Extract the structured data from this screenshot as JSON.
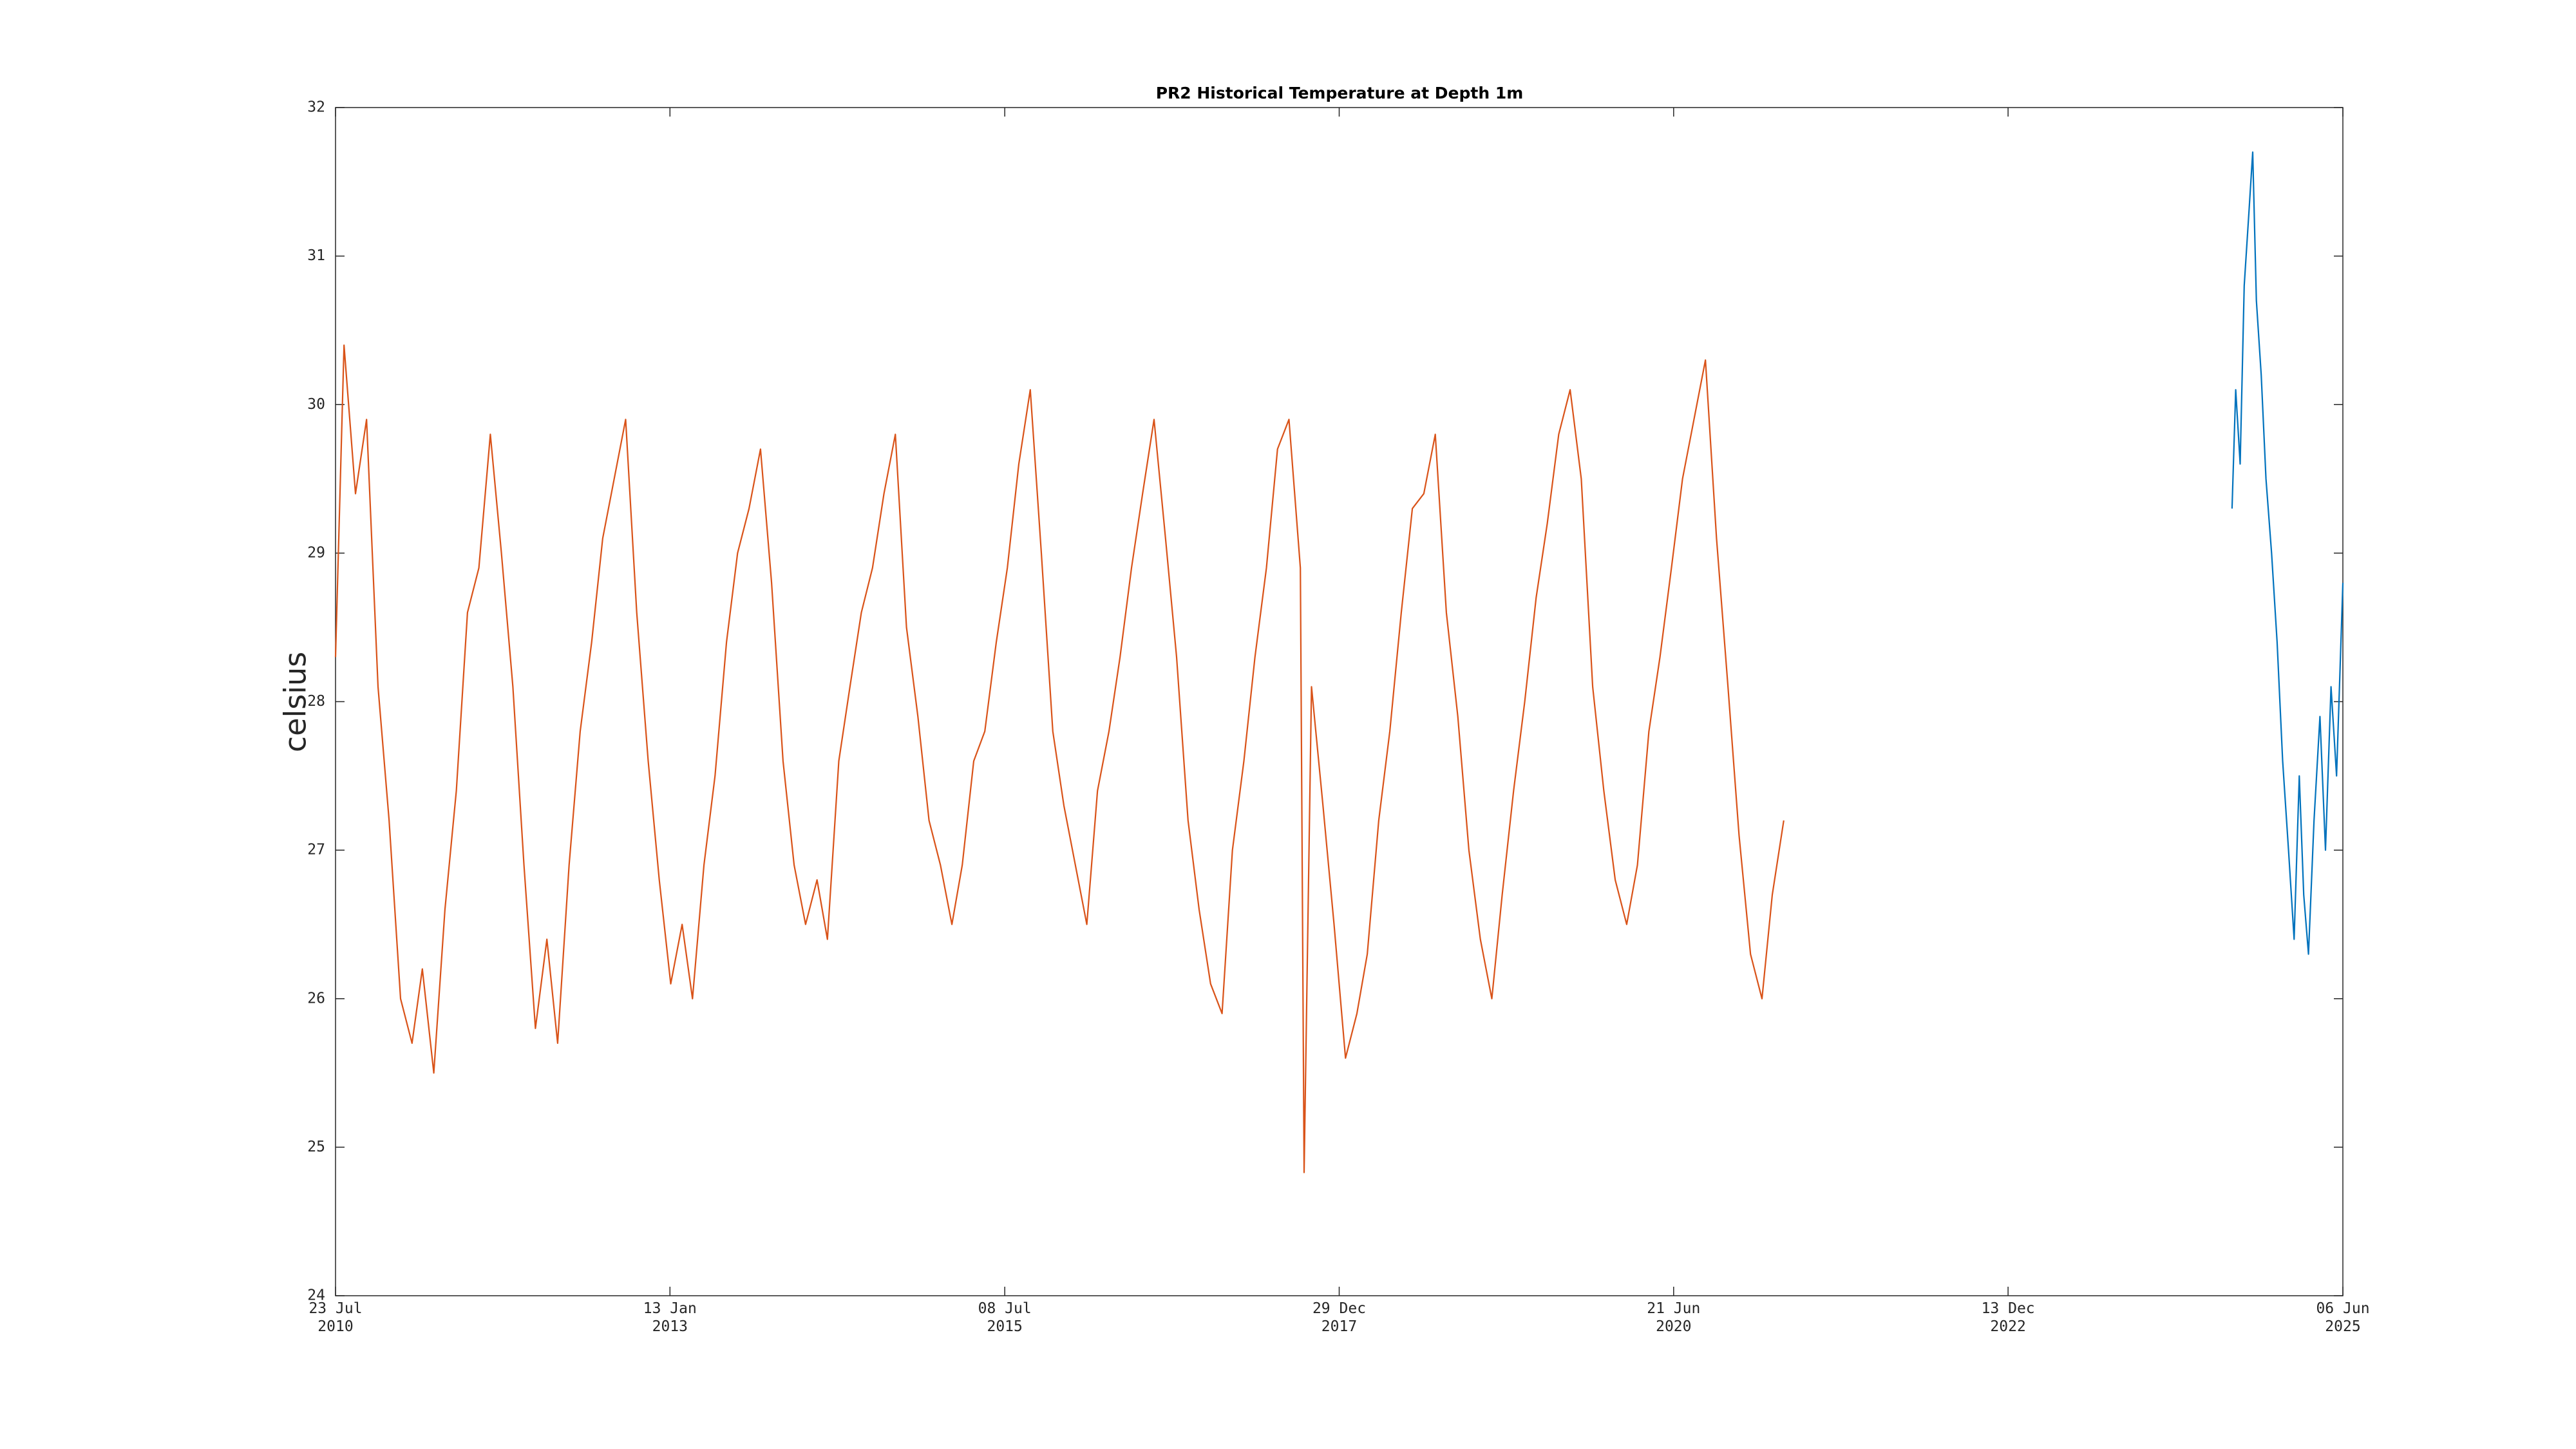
{
  "chart_data": {
    "type": "line",
    "title": "PR2 Historical Temperature at Depth 1m",
    "y_label": "celsius",
    "xlim": [
      "2010-07-23",
      "2025-06-06"
    ],
    "xticks": [
      {
        "value": "2010-07-23",
        "label": "23 Jul\n2010"
      },
      {
        "value": "2013-01-13",
        "label": "13 Jan\n2013"
      },
      {
        "value": "2015-07-08",
        "label": "08 Jul\n2015"
      },
      {
        "value": "2017-12-29",
        "label": "29 Dec\n2017"
      },
      {
        "value": "2020-06-21",
        "label": "21 Jun\n2020"
      },
      {
        "value": "2022-12-13",
        "label": "13 Dec\n2022"
      },
      {
        "value": "2025-06-06",
        "label": "06 Jun\n2025"
      }
    ],
    "ylim": [
      24,
      32
    ],
    "yticks": [
      24,
      25,
      26,
      27,
      28,
      29,
      30,
      31,
      32
    ],
    "grid": false,
    "series": [
      {
        "color": "#d95319",
        "x": [
          "2010-07-23",
          "2010-08-15",
          "2010-09-15",
          "2010-10-15",
          "2010-11-15",
          "2010-12-15",
          "2011-01-15",
          "2011-02-15",
          "2011-03-15",
          "2011-04-15",
          "2011-05-15",
          "2011-06-15",
          "2011-07-15",
          "2011-08-15",
          "2011-09-15",
          "2011-10-15",
          "2011-11-15",
          "2011-12-15",
          "2012-01-15",
          "2012-02-15",
          "2012-03-15",
          "2012-04-15",
          "2012-05-15",
          "2012-06-15",
          "2012-07-15",
          "2012-08-15",
          "2012-09-15",
          "2012-10-15",
          "2012-11-15",
          "2012-12-15",
          "2013-01-15",
          "2013-02-15",
          "2013-03-15",
          "2013-04-15",
          "2013-05-15",
          "2013-06-15",
          "2013-07-15",
          "2013-08-15",
          "2013-09-15",
          "2013-10-15",
          "2013-11-15",
          "2013-12-15",
          "2014-01-15",
          "2014-02-15",
          "2014-03-15",
          "2014-04-15",
          "2014-05-15",
          "2014-06-15",
          "2014-07-15",
          "2014-08-15",
          "2014-09-15",
          "2014-10-15",
          "2014-11-15",
          "2014-12-15",
          "2015-01-15",
          "2015-02-15",
          "2015-03-15",
          "2015-04-15",
          "2015-05-15",
          "2015-06-15",
          "2015-07-15",
          "2015-08-15",
          "2015-09-15",
          "2015-10-15",
          "2015-11-15",
          "2015-12-15",
          "2016-01-15",
          "2016-02-15",
          "2016-03-15",
          "2016-04-15",
          "2016-05-15",
          "2016-06-15",
          "2016-07-15",
          "2016-08-15",
          "2016-09-15",
          "2016-10-15",
          "2016-11-15",
          "2016-12-15",
          "2017-01-15",
          "2017-02-15",
          "2017-03-15",
          "2017-04-15",
          "2017-05-15",
          "2017-06-15",
          "2017-07-15",
          "2017-08-15",
          "2017-09-15",
          "2017-09-25",
          "2017-10-15",
          "2017-11-15",
          "2017-12-15",
          "2018-01-15",
          "2018-02-15",
          "2018-03-15",
          "2018-04-15",
          "2018-05-15",
          "2018-06-15",
          "2018-07-15",
          "2018-08-15",
          "2018-09-15",
          "2018-10-15",
          "2018-11-15",
          "2018-12-15",
          "2019-01-15",
          "2019-02-15",
          "2019-03-15",
          "2019-04-15",
          "2019-05-15",
          "2019-06-15",
          "2019-07-15",
          "2019-08-15",
          "2019-09-15",
          "2019-10-15",
          "2019-11-15",
          "2019-12-15",
          "2020-01-15",
          "2020-02-15",
          "2020-03-15",
          "2020-04-15",
          "2020-05-15",
          "2020-06-15",
          "2020-07-15",
          "2020-08-15",
          "2020-09-15",
          "2020-10-15",
          "2020-11-15",
          "2020-12-15",
          "2021-01-15",
          "2021-02-15",
          "2021-03-15",
          "2021-04-15"
        ],
        "values": [
          28.3,
          30.4,
          29.4,
          29.9,
          28.1,
          27.2,
          26.0,
          25.7,
          26.2,
          25.5,
          26.6,
          27.4,
          28.6,
          28.9,
          29.8,
          29.0,
          28.1,
          26.9,
          25.8,
          26.4,
          25.7,
          26.9,
          27.8,
          28.4,
          29.1,
          29.5,
          29.9,
          28.6,
          27.6,
          26.8,
          26.1,
          26.5,
          26.0,
          26.9,
          27.5,
          28.4,
          29.0,
          29.3,
          29.7,
          28.8,
          27.6,
          26.9,
          26.5,
          26.8,
          26.4,
          27.6,
          28.1,
          28.6,
          28.9,
          29.4,
          29.8,
          28.5,
          27.9,
          27.2,
          26.9,
          26.5,
          26.9,
          27.6,
          27.8,
          28.4,
          28.9,
          29.6,
          30.1,
          29.0,
          27.8,
          27.3,
          26.9,
          26.5,
          27.4,
          27.8,
          28.3,
          28.9,
          29.4,
          29.9,
          29.1,
          28.3,
          27.2,
          26.6,
          26.1,
          25.9,
          27.0,
          27.6,
          28.3,
          28.9,
          29.7,
          29.9,
          28.9,
          24.83,
          28.1,
          27.3,
          26.5,
          25.6,
          25.9,
          26.3,
          27.2,
          27.8,
          28.6,
          29.3,
          29.4,
          29.8,
          28.6,
          27.9,
          27.0,
          26.4,
          26.0,
          26.7,
          27.4,
          28.0,
          28.7,
          29.2,
          29.8,
          30.1,
          29.5,
          28.1,
          27.4,
          26.8,
          26.5,
          26.9,
          27.8,
          28.3,
          28.9,
          29.5,
          29.9,
          30.3,
          29.1,
          28.1,
          27.1,
          26.3,
          26.0,
          26.7,
          27.2
        ]
      },
      {
        "color": "#0072bd",
        "x": [
          "2024-08-10",
          "2024-08-20",
          "2024-09-01",
          "2024-09-12",
          "2024-09-25",
          "2024-10-05",
          "2024-10-15",
          "2024-10-28",
          "2024-11-10",
          "2024-11-25",
          "2024-12-10",
          "2024-12-25",
          "2025-01-10",
          "2025-01-25",
          "2025-02-08",
          "2025-02-20",
          "2025-03-05",
          "2025-03-20",
          "2025-04-05",
          "2025-04-20",
          "2025-05-05",
          "2025-05-20",
          "2025-06-06"
        ],
        "values": [
          29.3,
          30.1,
          29.6,
          30.8,
          31.3,
          31.7,
          30.7,
          30.2,
          29.5,
          29.0,
          28.4,
          27.6,
          27.0,
          26.4,
          27.5,
          26.7,
          26.3,
          27.2,
          27.9,
          27.0,
          28.1,
          27.5,
          28.8
        ]
      }
    ]
  }
}
